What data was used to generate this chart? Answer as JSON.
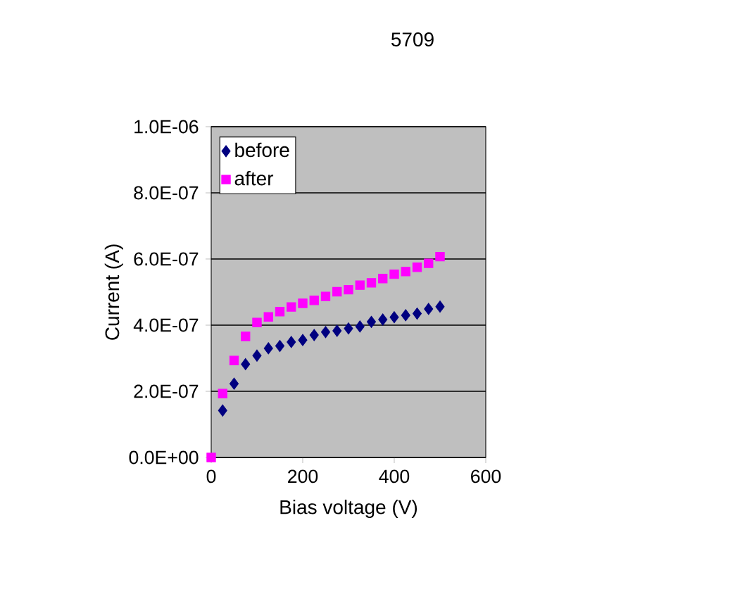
{
  "chart_data": {
    "type": "scatter",
    "title": "5709",
    "xlabel": "Bias voltage (V)",
    "ylabel": "Current (A)",
    "x": [
      0,
      25,
      50,
      75,
      100,
      125,
      150,
      175,
      200,
      225,
      250,
      275,
      300,
      325,
      350,
      375,
      400,
      425,
      450,
      475,
      500
    ],
    "series": [
      {
        "name": "before",
        "color": "#000080",
        "marker": "diamond",
        "values": [
          null,
          1.42e-07,
          2.23e-07,
          2.82e-07,
          3.08e-07,
          3.3e-07,
          3.37e-07,
          3.49e-07,
          3.55e-07,
          3.7e-07,
          3.79e-07,
          3.83e-07,
          3.9e-07,
          3.96e-07,
          4.1e-07,
          4.17e-07,
          4.24e-07,
          4.3e-07,
          4.35e-07,
          4.49e-07,
          4.56e-07
        ]
      },
      {
        "name": "after",
        "color": "#ff00ff",
        "marker": "square",
        "values": [
          0,
          1.93e-07,
          2.93e-07,
          3.66e-07,
          4.08e-07,
          4.25e-07,
          4.41e-07,
          4.55e-07,
          4.66e-07,
          4.75e-07,
          4.87e-07,
          5.01e-07,
          5.07e-07,
          5.21e-07,
          5.28e-07,
          5.41e-07,
          5.54e-07,
          5.62e-07,
          5.75e-07,
          5.87e-07,
          6.07e-07
        ]
      }
    ],
    "xlim": [
      0,
      600
    ],
    "xticks": [
      0,
      200,
      400,
      600
    ],
    "ylim": [
      0,
      1e-06
    ],
    "yticks": [
      {
        "value": 0,
        "label": "0.0E+00"
      },
      {
        "value": 2e-07,
        "label": "2.0E-07"
      },
      {
        "value": 4e-07,
        "label": "4.0E-07"
      },
      {
        "value": 6e-07,
        "label": "6.0E-07"
      },
      {
        "value": 8e-07,
        "label": "8.0E-07"
      },
      {
        "value": 1e-06,
        "label": "1.0E-06"
      }
    ],
    "grid": "y",
    "legend": "top left"
  }
}
